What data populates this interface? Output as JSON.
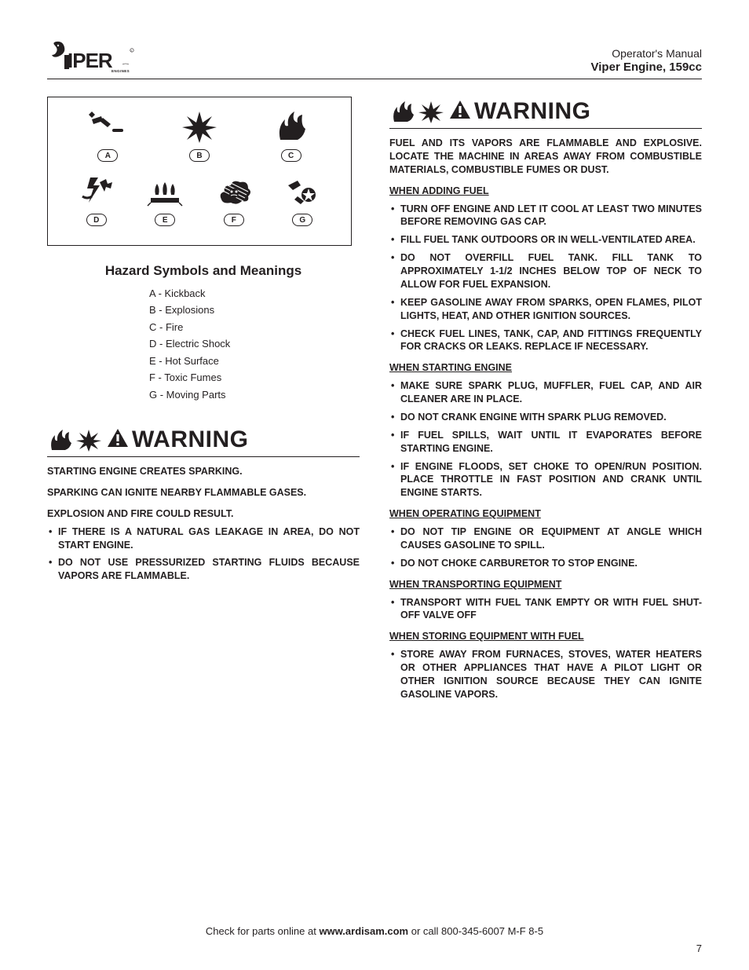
{
  "header": {
    "manual_line": "Operator's Manual",
    "product_line": "Viper Engine, 159cc"
  },
  "hazard": {
    "title": "Hazard Symbols and Meanings",
    "items": [
      {
        "letter": "A",
        "name": "Kickback"
      },
      {
        "letter": "B",
        "name": "Explosions"
      },
      {
        "letter": "C",
        "name": "Fire"
      },
      {
        "letter": "D",
        "name": "Electric Shock"
      },
      {
        "letter": "E",
        "name": "Hot Surface"
      },
      {
        "letter": "F",
        "name": "Toxic Fumes"
      },
      {
        "letter": "G",
        "name": "Moving Parts"
      }
    ]
  },
  "warning_word": "WARNING",
  "left_warning": {
    "p1": "STARTING ENGINE CREATES SPARKING.",
    "p2": "SPARKING CAN IGNITE NEARBY FLAMMABLE GASES.",
    "p3": "EXPLOSION AND FIRE COULD RESULT.",
    "bullets": [
      "IF THERE IS A NATURAL GAS LEAKAGE IN AREA, DO NOT START ENGINE.",
      "DO NOT USE PRESSURIZED STARTING FLUIDS BECAUSE VAPORS ARE FLAMMABLE."
    ]
  },
  "right_warning": {
    "intro": "FUEL AND ITS VAPORS ARE FLAMMABLE AND EXPLOSIVE.  LOCATE THE MACHINE IN AREAS AWAY FROM COMBUSTIBLE MATERIALS, COMBUSTIBLE FUMES OR DUST.",
    "sections": [
      {
        "heading": "WHEN ADDING FUEL",
        "bullets": [
          "TURN OFF ENGINE AND LET IT COOL AT LEAST TWO MINUTES BEFORE REMOVING GAS CAP.",
          "FILL FUEL TANK OUTDOORS OR IN WELL-VENTILATED AREA.",
          "DO NOT OVERFILL FUEL TANK. FILL TANK TO APPROXIMATELY 1-1/2 INCHES BELOW TOP OF NECK TO ALLOW FOR FUEL EXPANSION.",
          "KEEP GASOLINE AWAY FROM SPARKS, OPEN FLAMES, PILOT LIGHTS, HEAT, AND OTHER IGNITION SOURCES.",
          "CHECK FUEL LINES, TANK, CAP, AND FITTINGS FREQUENTLY FOR CRACKS OR LEAKS. REPLACE IF NECESSARY."
        ]
      },
      {
        "heading": "WHEN STARTING ENGINE",
        "bullets": [
          "MAKE SURE SPARK PLUG, MUFFLER, FUEL CAP, AND AIR CLEANER ARE IN PLACE.",
          "DO NOT CRANK ENGINE WITH SPARK PLUG REMOVED.",
          "IF FUEL SPILLS, WAIT UNTIL IT EVAPORATES BEFORE STARTING ENGINE.",
          "IF ENGINE FLOODS, SET CHOKE TO OPEN/RUN POSITION.  PLACE THROTTLE IN FAST POSITION AND CRANK UNTIL ENGINE STARTS."
        ]
      },
      {
        "heading": "WHEN OPERATING EQUIPMENT",
        "bullets": [
          "DO NOT TIP ENGINE OR EQUIPMENT AT ANGLE WHICH CAUSES GASOLINE TO SPILL.",
          "DO NOT CHOKE CARBURETOR TO STOP ENGINE."
        ]
      },
      {
        "heading": "WHEN TRANSPORTING EQUIPMENT",
        "bullets": [
          "TRANSPORT WITH FUEL TANK EMPTY OR WITH FUEL SHUT-OFF VALVE OFF"
        ]
      },
      {
        "heading": "WHEN STORING EQUIPMENT WITH FUEL",
        "bullets": [
          "STORE AWAY FROM FURNACES, STOVES, WATER HEATERS OR OTHER APPLIANCES THAT HAVE A PILOT LIGHT OR OTHER IGNITION SOURCE BECAUSE THEY CAN IGNITE GASOLINE VAPORS."
        ]
      }
    ]
  },
  "footer": {
    "prefix": "Check for parts online at ",
    "bold": "www.ardisam.com",
    "suffix": " or call 800-345-6007 M-F 8-5"
  },
  "page_number": "7"
}
